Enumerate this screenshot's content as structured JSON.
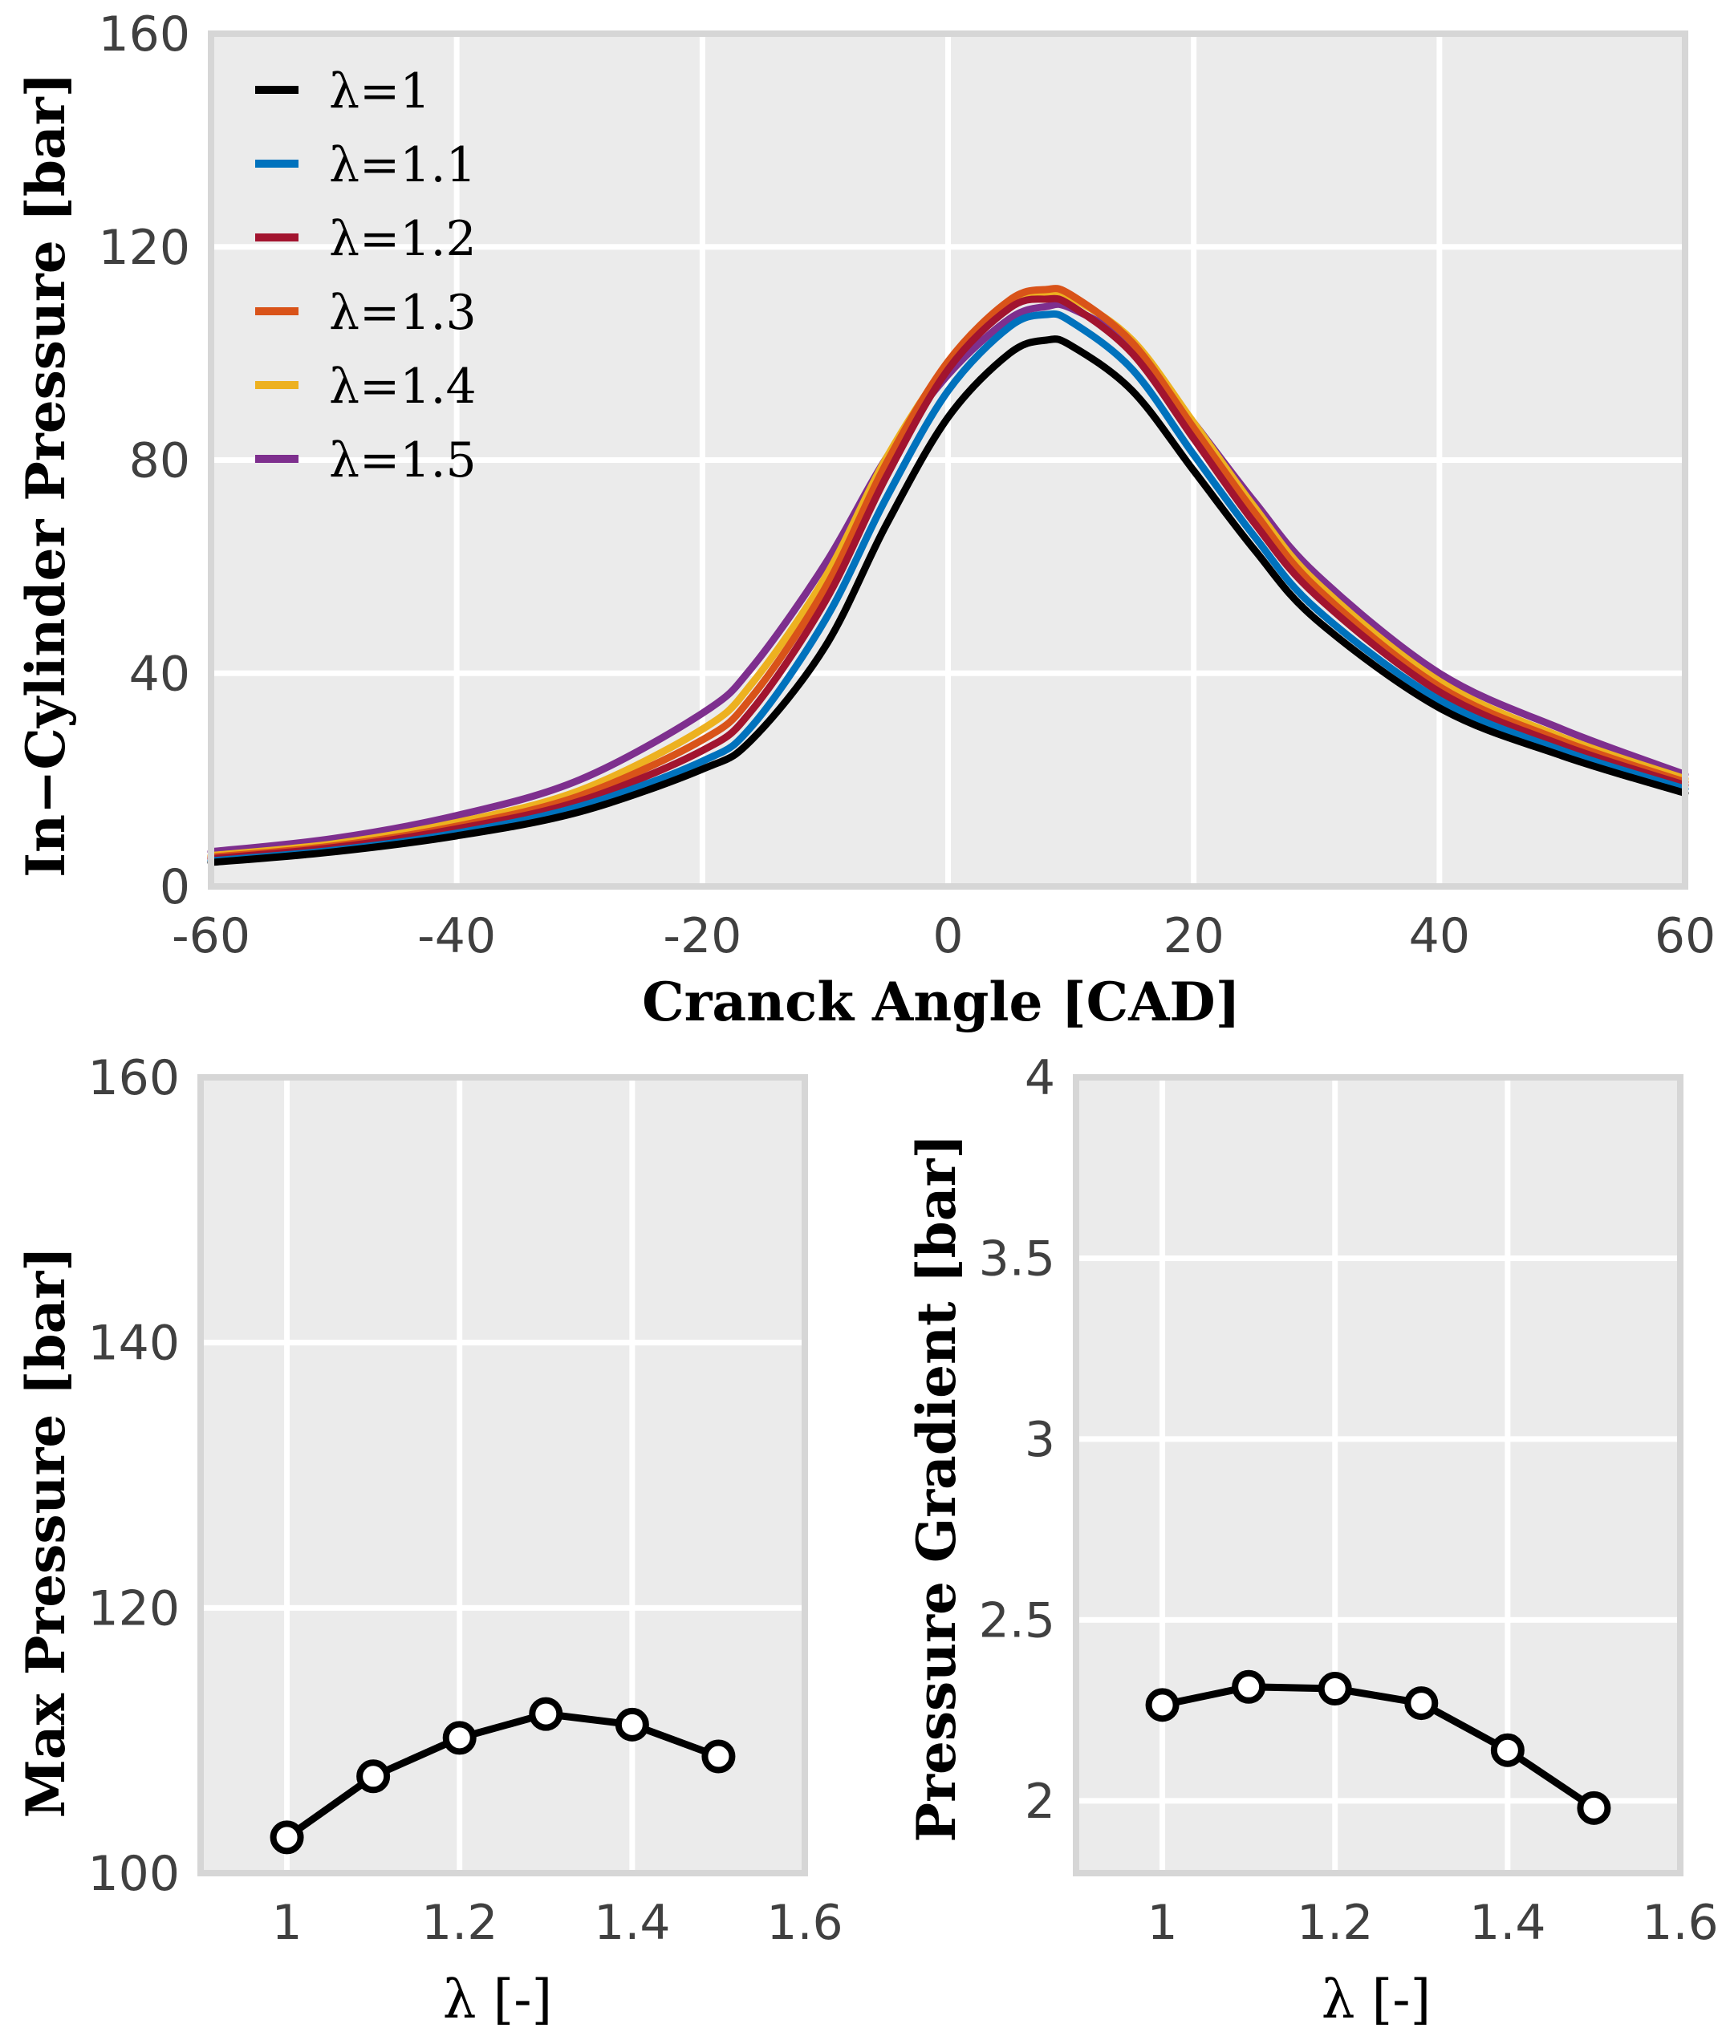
{
  "colors": {
    "panel_bg": "#EBEBEB",
    "frame": "#D6D6D6",
    "grid": "#FFFFFF",
    "lambda_1": "#000000",
    "lambda_1_1": "#0072BD",
    "lambda_1_2": "#A2142F",
    "lambda_1_3": "#D95319",
    "lambda_1_4": "#EDB120",
    "lambda_1_5": "#7E2F8E",
    "marker_face": "#FFFFFF",
    "marker_edge": "#000000"
  },
  "chart_data": [
    {
      "type": "line",
      "xlabel": "Cranck Angle [CAD]",
      "ylabel": "In−Cylinder Pressure [bar]",
      "xlim": [
        -60,
        60
      ],
      "ylim": [
        0,
        160
      ],
      "xticks": [
        "-60",
        "-40",
        "-20",
        "0",
        "20",
        "40",
        "60"
      ],
      "yticks": [
        "0",
        "40",
        "80",
        "120",
        "160"
      ],
      "grid": true,
      "legend_position": "top-left",
      "x": [
        -60,
        -50,
        -40,
        -30,
        -20,
        -16,
        -10,
        -5,
        0,
        5,
        8,
        10,
        15,
        20,
        25,
        30,
        40,
        50,
        60
      ],
      "series": [
        {
          "name": "λ=1",
          "color": "lambda_1",
          "values": [
            4.5,
            6.5,
            9.5,
            14.0,
            22.0,
            27.5,
            45.0,
            68.0,
            88.0,
            100.0,
            102.5,
            101.5,
            93.0,
            78.0,
            63.0,
            50.0,
            33.5,
            24.5,
            17.5
          ]
        },
        {
          "name": "λ=1.1",
          "color": "lambda_1_1",
          "values": [
            4.8,
            6.8,
            10.0,
            15.0,
            23.5,
            30.0,
            50.0,
            73.0,
            93.0,
            105.0,
            107.3,
            106.0,
            97.0,
            81.0,
            65.5,
            52.0,
            35.0,
            25.5,
            18.3
          ]
        },
        {
          "name": "λ=1.2",
          "color": "lambda_1_2",
          "values": [
            5.2,
            7.3,
            10.8,
            16.0,
            25.5,
            33.0,
            53.5,
            77.0,
            97.0,
            108.5,
            110.2,
            109.0,
            100.0,
            84.0,
            68.0,
            54.5,
            36.5,
            26.5,
            19.0
          ]
        },
        {
          "name": "λ=1.3",
          "color": "lambda_1_3",
          "values": [
            5.5,
            7.6,
            11.3,
            17.0,
            27.5,
            35.5,
            56.0,
            79.5,
            98.5,
            110.0,
            112.0,
            111.0,
            102.0,
            86.0,
            70.0,
            56.0,
            37.5,
            27.3,
            19.6
          ]
        },
        {
          "name": "λ=1.4",
          "color": "lambda_1_4",
          "values": [
            5.8,
            8.0,
            12.0,
            18.0,
            29.5,
            38.0,
            58.0,
            80.5,
            98.0,
            109.0,
            111.2,
            110.5,
            102.5,
            87.0,
            71.0,
            57.0,
            38.5,
            28.0,
            20.2
          ]
        },
        {
          "name": "λ=1.5",
          "color": "lambda_1_5",
          "values": [
            6.5,
            9.0,
            13.3,
            20.0,
            32.5,
            41.0,
            60.5,
            80.5,
            96.0,
            106.5,
            108.8,
            108.5,
            101.5,
            87.0,
            72.0,
            58.5,
            40.0,
            29.5,
            21.0
          ]
        }
      ]
    },
    {
      "type": "line",
      "xlabel": "λ [-]",
      "ylabel": "Max Pressure [bar]",
      "xlim": [
        0.9,
        1.6
      ],
      "ylim": [
        100,
        160
      ],
      "xticks": [
        "1",
        "1.2",
        "1.4",
        "1.6"
      ],
      "yticks": [
        "100",
        "120",
        "140",
        "160"
      ],
      "grid": true,
      "x": [
        1.0,
        1.1,
        1.2,
        1.3,
        1.4,
        1.5
      ],
      "series": [
        {
          "values": [
            102.7,
            107.3,
            110.2,
            112.0,
            111.2,
            108.8
          ]
        }
      ]
    },
    {
      "type": "line",
      "xlabel": "λ [-]",
      "ylabel": "Pressure Gradient [bar]",
      "xlim": [
        0.9,
        1.6
      ],
      "ylim": [
        1.8,
        4.0
      ],
      "xticks": [
        "1",
        "1.2",
        "1.4",
        "1.6"
      ],
      "yticks": [
        "2",
        "2.5",
        "3",
        "3.5",
        "4"
      ],
      "grid": true,
      "x": [
        1.0,
        1.1,
        1.2,
        1.3,
        1.4,
        1.5
      ],
      "series": [
        {
          "values": [
            2.265,
            2.315,
            2.31,
            2.27,
            2.14,
            1.98
          ]
        }
      ]
    }
  ]
}
